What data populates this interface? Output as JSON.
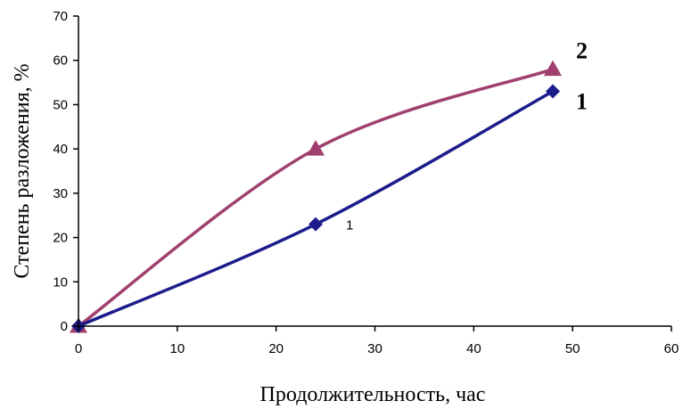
{
  "chart_data": {
    "type": "line",
    "title": "",
    "xlabel": "Продолжительность, час",
    "ylabel": "Степень разложения, %",
    "xlim": [
      0,
      60
    ],
    "ylim": [
      0,
      70
    ],
    "xticks": [
      0,
      10,
      20,
      30,
      40,
      50,
      60
    ],
    "yticks": [
      0,
      10,
      20,
      30,
      40,
      50,
      60,
      70
    ],
    "grid": false,
    "legend": "none",
    "series": [
      {
        "name": "1",
        "color": "#1c1c8c",
        "marker": "diamond",
        "x": [
          0,
          24,
          48
        ],
        "y": [
          0,
          23,
          53
        ],
        "point_labels": [
          "",
          "1",
          ""
        ]
      },
      {
        "name": "2",
        "color": "#a0406e",
        "marker": "triangle",
        "x": [
          0,
          24,
          48
        ],
        "y": [
          0,
          40,
          58
        ],
        "point_labels": [
          "",
          "",
          ""
        ]
      }
    ]
  }
}
